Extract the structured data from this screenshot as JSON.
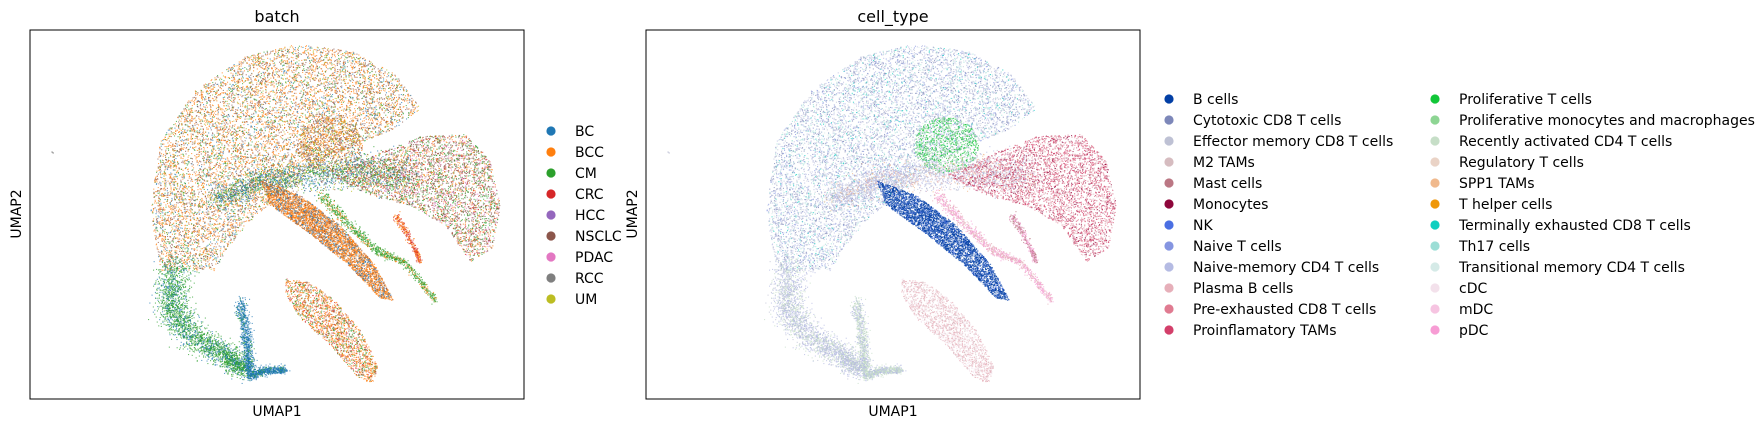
{
  "chart_data": [
    {
      "type": "scatter",
      "title": "batch",
      "xlabel": "UMAP1",
      "ylabel": "UMAP2",
      "grid": false,
      "legend_position": "right",
      "legend": [
        {
          "name": "BC",
          "color": "#1f77b4"
        },
        {
          "name": "BCC",
          "color": "#ff7f0e"
        },
        {
          "name": "CM",
          "color": "#2ca02c"
        },
        {
          "name": "CRC",
          "color": "#d62728"
        },
        {
          "name": "HCC",
          "color": "#9467bd"
        },
        {
          "name": "NSCLC",
          "color": "#8c564b"
        },
        {
          "name": "PDAC",
          "color": "#e377c2"
        },
        {
          "name": "RCC",
          "color": "#7f7f7f"
        },
        {
          "name": "UM",
          "color": "#bcbd22"
        }
      ]
    },
    {
      "type": "scatter",
      "title": "cell_type",
      "xlabel": "UMAP1",
      "ylabel": "UMAP2",
      "grid": false,
      "legend_position": "right",
      "legend": [
        {
          "name": "B cells",
          "color": "#023fa5"
        },
        {
          "name": "Cytotoxic CD8 T cells",
          "color": "#7d87b9"
        },
        {
          "name": "Effector memory CD8 T cells",
          "color": "#bec1d4"
        },
        {
          "name": "M2 TAMs",
          "color": "#d6bcc0"
        },
        {
          "name": "Mast cells",
          "color": "#bb7784"
        },
        {
          "name": "Monocytes",
          "color": "#8e063b"
        },
        {
          "name": "NK",
          "color": "#4a6fe3"
        },
        {
          "name": "Naive T cells",
          "color": "#8595e1"
        },
        {
          "name": "Naive-memory CD4 T cells",
          "color": "#b5bbe3"
        },
        {
          "name": "Plasma B cells",
          "color": "#e6afb9"
        },
        {
          "name": "Pre-exhausted CD8 T cells",
          "color": "#e07b91"
        },
        {
          "name": "Proinflamatory TAMs",
          "color": "#d33f6a"
        },
        {
          "name": "Proliferative T cells",
          "color": "#11c638"
        },
        {
          "name": "Proliferative monocytes and macrophages",
          "color": "#8dd593"
        },
        {
          "name": "Recently activated CD4 T cells",
          "color": "#c6dec7"
        },
        {
          "name": "Regulatory T cells",
          "color": "#ead3c6"
        },
        {
          "name": "SPP1 TAMs",
          "color": "#f0b98d"
        },
        {
          "name": "T helper cells",
          "color": "#ef9708"
        },
        {
          "name": "Terminally exhausted CD8 T cells",
          "color": "#0fcfc0"
        },
        {
          "name": "Th17 cells",
          "color": "#9cded6"
        },
        {
          "name": "Transitional memory CD4 T cells",
          "color": "#d5eae7"
        },
        {
          "name": "cDC",
          "color": "#f3e1eb"
        },
        {
          "name": "mDC",
          "color": "#f6c4e1"
        },
        {
          "name": "pDC",
          "color": "#f79cd4"
        }
      ]
    }
  ]
}
